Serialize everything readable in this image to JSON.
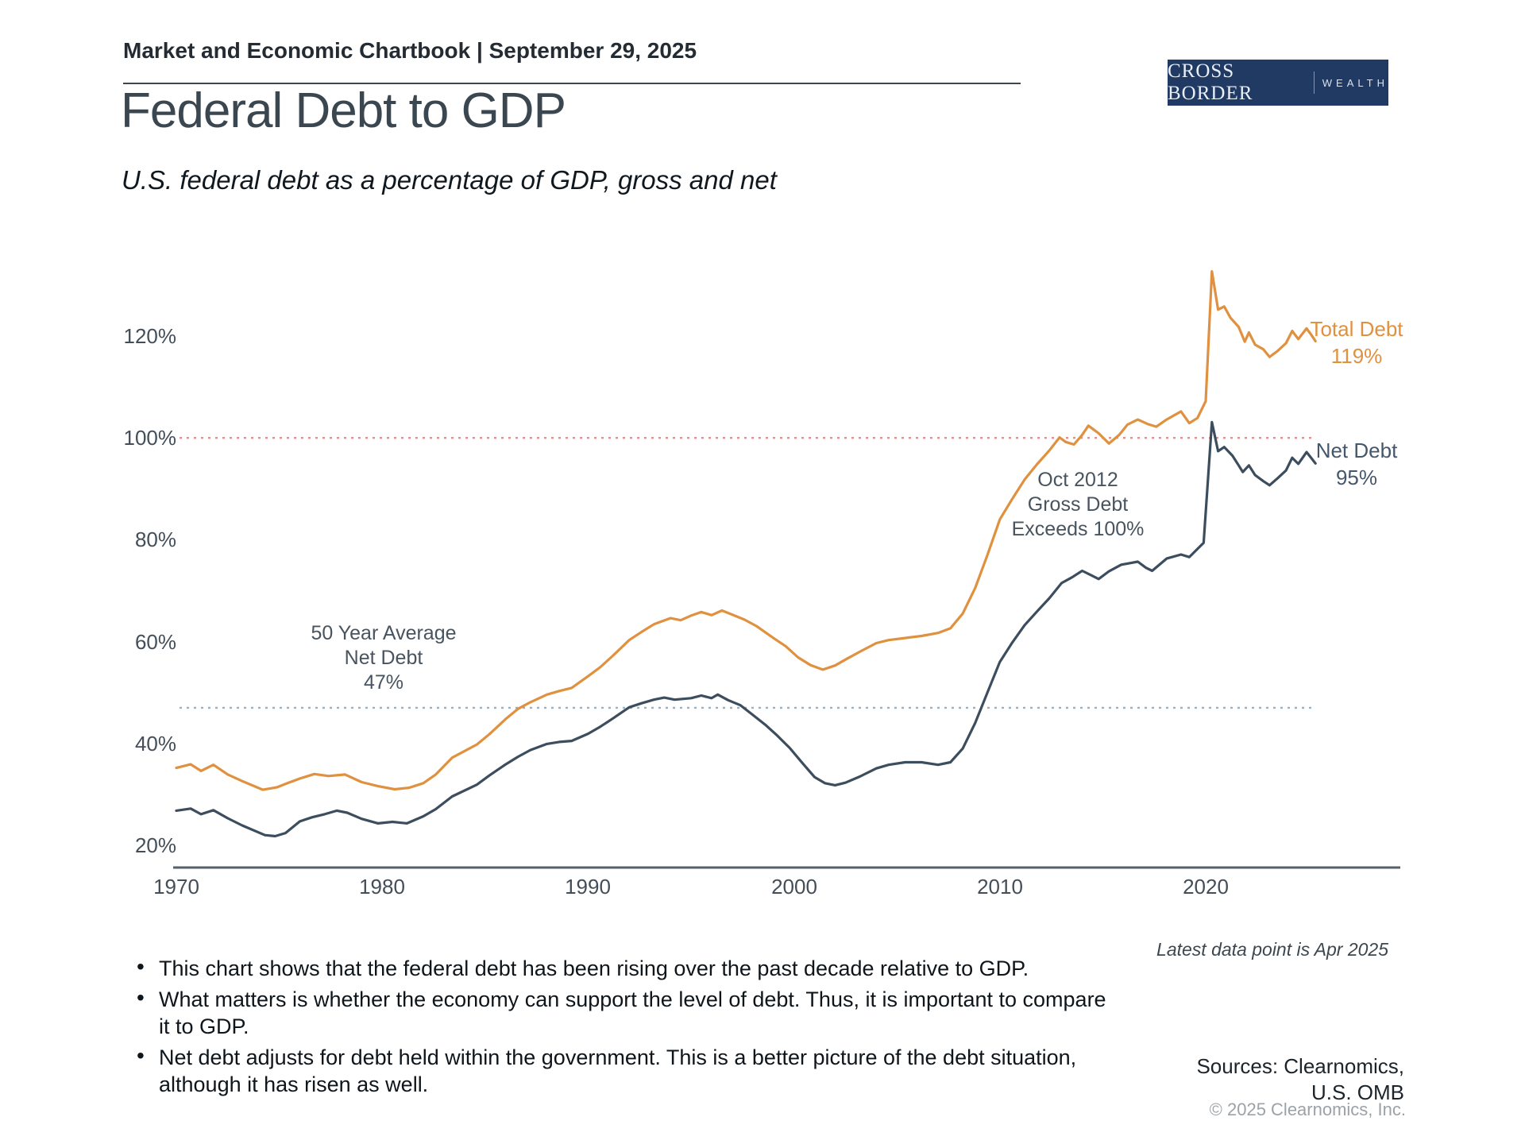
{
  "header": {
    "chartbook_title": "Market and Economic Chartbook | September 29, 2025"
  },
  "logo": {
    "primary": "CROSS BORDER",
    "secondary": "WEALTH",
    "background_color": "#203A64"
  },
  "title": "Federal Debt to GDP",
  "subtitle": "U.S. federal debt as a percentage of GDP, gross and net",
  "footnote": "Latest data point is Apr 2025",
  "notes": [
    "This chart shows that the federal debt has been rising over the past decade relative to GDP.",
    "What matters is whether the economy can support the level of debt. Thus, it is important to compare it to GDP.",
    "Net debt adjusts for debt held within the government. This is a better picture of the debt situation, although it has risen as well."
  ],
  "sources": {
    "line1": "Sources: Clearnomics,",
    "line2": "U.S. OMB",
    "copyright": "© 2025 Clearnomics, Inc."
  },
  "chart_data": {
    "type": "line",
    "title": "Federal Debt to GDP",
    "xlabel": "",
    "ylabel": "",
    "grid": false,
    "legend_position": "end-of-line-labels",
    "xlim": [
      1970,
      2029.5
    ],
    "ylim": [
      15,
      135
    ],
    "x_ticks": [
      1970,
      1980,
      1990,
      2000,
      2010,
      2020
    ],
    "x_tick_labels": [
      "1970",
      "1980",
      "1990",
      "2000",
      "2010",
      "2020"
    ],
    "y_ticks": [
      20,
      40,
      60,
      80,
      100,
      120
    ],
    "y_tick_labels": [
      "20%",
      "40%",
      "60%",
      "80%",
      "100%",
      "120%"
    ],
    "reference_lines": [
      {
        "name": "100% level",
        "value": 100,
        "color": "#E28F8F",
        "style": "dotted"
      },
      {
        "name": "50 year average net debt",
        "value": 47,
        "color": "#9BB1C2",
        "style": "dotted"
      }
    ],
    "annotations": [
      {
        "name": "fifty-year-average",
        "lines": [
          "50 Year Average",
          "Net Debt",
          "47%"
        ],
        "x": 1980,
        "y": 57
      },
      {
        "name": "oct-2012-crossing",
        "lines": [
          "Oct 2012",
          "Gross Debt",
          "Exceeds 100%"
        ],
        "x": 2013.8,
        "y": 87
      }
    ],
    "series": [
      {
        "name": "Total Debt",
        "end_label": "Total Debt",
        "end_value_label": "119%",
        "latest_value": 119,
        "color": "#E0913F",
        "points": [
          [
            1970,
            35.2
          ],
          [
            1970.7,
            35.9
          ],
          [
            1971.2,
            34.6
          ],
          [
            1971.8,
            35.8
          ],
          [
            1972.5,
            33.9
          ],
          [
            1973.2,
            32.6
          ],
          [
            1974.2,
            30.9
          ],
          [
            1974.9,
            31.4
          ],
          [
            1975.4,
            32.2
          ],
          [
            1976,
            33.1
          ],
          [
            1976.7,
            34.0
          ],
          [
            1977.4,
            33.6
          ],
          [
            1978.2,
            33.9
          ],
          [
            1979,
            32.4
          ],
          [
            1979.8,
            31.6
          ],
          [
            1980.6,
            31.0
          ],
          [
            1981.3,
            31.3
          ],
          [
            1982,
            32.2
          ],
          [
            1982.6,
            33.9
          ],
          [
            1983.4,
            37.2
          ],
          [
            1984.6,
            39.8
          ],
          [
            1985.2,
            41.8
          ],
          [
            1986,
            44.8
          ],
          [
            1986.6,
            46.8
          ],
          [
            1987.2,
            48.1
          ],
          [
            1988,
            49.6
          ],
          [
            1988.6,
            50.3
          ],
          [
            1989.2,
            50.9
          ],
          [
            1990,
            53.2
          ],
          [
            1990.6,
            55.0
          ],
          [
            1991.2,
            57.2
          ],
          [
            1992,
            60.3
          ],
          [
            1992.6,
            61.9
          ],
          [
            1993.2,
            63.4
          ],
          [
            1994,
            64.6
          ],
          [
            1994.5,
            64.2
          ],
          [
            1995,
            65.1
          ],
          [
            1995.5,
            65.8
          ],
          [
            1996,
            65.2
          ],
          [
            1996.5,
            66.1
          ],
          [
            1997,
            65.3
          ],
          [
            1997.6,
            64.3
          ],
          [
            1998.2,
            63.0
          ],
          [
            1999,
            60.7
          ],
          [
            1999.6,
            59.1
          ],
          [
            2000.2,
            56.9
          ],
          [
            2000.8,
            55.4
          ],
          [
            2001.4,
            54.5
          ],
          [
            2002,
            55.3
          ],
          [
            2002.6,
            56.7
          ],
          [
            2003.2,
            58.0
          ],
          [
            2004,
            59.7
          ],
          [
            2004.6,
            60.3
          ],
          [
            2005.4,
            60.7
          ],
          [
            2006.2,
            61.1
          ],
          [
            2007,
            61.7
          ],
          [
            2007.6,
            62.6
          ],
          [
            2008.2,
            65.5
          ],
          [
            2008.8,
            70.5
          ],
          [
            2009.4,
            77.0
          ],
          [
            2010,
            84.0
          ],
          [
            2010.6,
            88.0
          ],
          [
            2011.2,
            91.8
          ],
          [
            2011.8,
            94.8
          ],
          [
            2012.4,
            97.5
          ],
          [
            2012.9,
            100.1
          ],
          [
            2013.2,
            99.2
          ],
          [
            2013.6,
            98.7
          ],
          [
            2014,
            100.6
          ],
          [
            2014.3,
            102.4
          ],
          [
            2014.8,
            100.9
          ],
          [
            2015.3,
            98.9
          ],
          [
            2015.8,
            100.6
          ],
          [
            2016.2,
            102.6
          ],
          [
            2016.7,
            103.6
          ],
          [
            2017.2,
            102.7
          ],
          [
            2017.6,
            102.2
          ],
          [
            2018.1,
            103.6
          ],
          [
            2018.8,
            105.2
          ],
          [
            2019.2,
            102.9
          ],
          [
            2019.6,
            103.9
          ],
          [
            2020,
            107.2
          ],
          [
            2020.3,
            132.7
          ],
          [
            2020.6,
            125.2
          ],
          [
            2020.9,
            125.8
          ],
          [
            2021.2,
            123.6
          ],
          [
            2021.6,
            121.8
          ],
          [
            2021.9,
            118.9
          ],
          [
            2022.1,
            120.7
          ],
          [
            2022.4,
            118.3
          ],
          [
            2022.8,
            117.4
          ],
          [
            2023.1,
            115.9
          ],
          [
            2023.5,
            117.1
          ],
          [
            2023.9,
            118.6
          ],
          [
            2024.2,
            121.0
          ],
          [
            2024.5,
            119.4
          ],
          [
            2024.9,
            121.5
          ],
          [
            2025.1,
            120.4
          ],
          [
            2025.33,
            119
          ]
        ]
      },
      {
        "name": "Net Debt",
        "end_label": "Net Debt",
        "end_value_label": "95%",
        "latest_value": 95,
        "color": "#3C4D5E",
        "points": [
          [
            1970,
            26.8
          ],
          [
            1970.7,
            27.2
          ],
          [
            1971.2,
            26.1
          ],
          [
            1971.8,
            26.9
          ],
          [
            1972.5,
            25.3
          ],
          [
            1973.2,
            23.9
          ],
          [
            1974.3,
            22.0
          ],
          [
            1974.8,
            21.8
          ],
          [
            1975.3,
            22.4
          ],
          [
            1976,
            24.7
          ],
          [
            1976.6,
            25.5
          ],
          [
            1977.2,
            26.1
          ],
          [
            1977.8,
            26.8
          ],
          [
            1978.3,
            26.4
          ],
          [
            1979,
            25.2
          ],
          [
            1979.8,
            24.3
          ],
          [
            1980.5,
            24.6
          ],
          [
            1981.2,
            24.3
          ],
          [
            1982,
            25.7
          ],
          [
            1982.6,
            27.1
          ],
          [
            1983.4,
            29.6
          ],
          [
            1984.6,
            31.9
          ],
          [
            1985.2,
            33.7
          ],
          [
            1986,
            35.9
          ],
          [
            1986.6,
            37.4
          ],
          [
            1987.2,
            38.7
          ],
          [
            1988,
            39.9
          ],
          [
            1988.6,
            40.3
          ],
          [
            1989.2,
            40.5
          ],
          [
            1990,
            41.9
          ],
          [
            1990.6,
            43.3
          ],
          [
            1991.2,
            44.9
          ],
          [
            1992,
            47.1
          ],
          [
            1992.6,
            47.9
          ],
          [
            1993.2,
            48.6
          ],
          [
            1993.7,
            49.0
          ],
          [
            1994.2,
            48.6
          ],
          [
            1995,
            48.9
          ],
          [
            1995.5,
            49.4
          ],
          [
            1996,
            48.9
          ],
          [
            1996.3,
            49.6
          ],
          [
            1996.8,
            48.5
          ],
          [
            1997.4,
            47.5
          ],
          [
            1998,
            45.6
          ],
          [
            1998.6,
            43.7
          ],
          [
            1999.2,
            41.5
          ],
          [
            1999.8,
            39.1
          ],
          [
            2000.4,
            36.2
          ],
          [
            2001,
            33.4
          ],
          [
            2001.5,
            32.2
          ],
          [
            2002,
            31.8
          ],
          [
            2002.5,
            32.3
          ],
          [
            2003.2,
            33.5
          ],
          [
            2004,
            35.1
          ],
          [
            2004.6,
            35.8
          ],
          [
            2005.4,
            36.3
          ],
          [
            2006.2,
            36.3
          ],
          [
            2007,
            35.8
          ],
          [
            2007.6,
            36.3
          ],
          [
            2008.2,
            39.0
          ],
          [
            2008.8,
            44.0
          ],
          [
            2009.4,
            50.0
          ],
          [
            2010,
            56.0
          ],
          [
            2010.6,
            59.8
          ],
          [
            2011.2,
            63.2
          ],
          [
            2011.8,
            65.9
          ],
          [
            2012.4,
            68.5
          ],
          [
            2013,
            71.5
          ],
          [
            2013.5,
            72.6
          ],
          [
            2014,
            73.9
          ],
          [
            2014.4,
            73.1
          ],
          [
            2014.8,
            72.3
          ],
          [
            2015.3,
            73.8
          ],
          [
            2015.9,
            75.1
          ],
          [
            2016.3,
            75.4
          ],
          [
            2016.7,
            75.7
          ],
          [
            2017.1,
            74.5
          ],
          [
            2017.4,
            73.9
          ],
          [
            2018.1,
            76.3
          ],
          [
            2018.8,
            77.1
          ],
          [
            2019.2,
            76.6
          ],
          [
            2019.9,
            79.4
          ],
          [
            2020.3,
            103.1
          ],
          [
            2020.6,
            97.4
          ],
          [
            2020.9,
            98.2
          ],
          [
            2021.3,
            96.5
          ],
          [
            2021.6,
            94.6
          ],
          [
            2021.8,
            93.3
          ],
          [
            2022.1,
            94.6
          ],
          [
            2022.4,
            92.7
          ],
          [
            2022.8,
            91.5
          ],
          [
            2023.1,
            90.7
          ],
          [
            2023.5,
            92.1
          ],
          [
            2023.9,
            93.6
          ],
          [
            2024.2,
            96.1
          ],
          [
            2024.5,
            94.9
          ],
          [
            2024.9,
            97.2
          ],
          [
            2025.1,
            96.2
          ],
          [
            2025.33,
            95
          ]
        ]
      }
    ]
  }
}
